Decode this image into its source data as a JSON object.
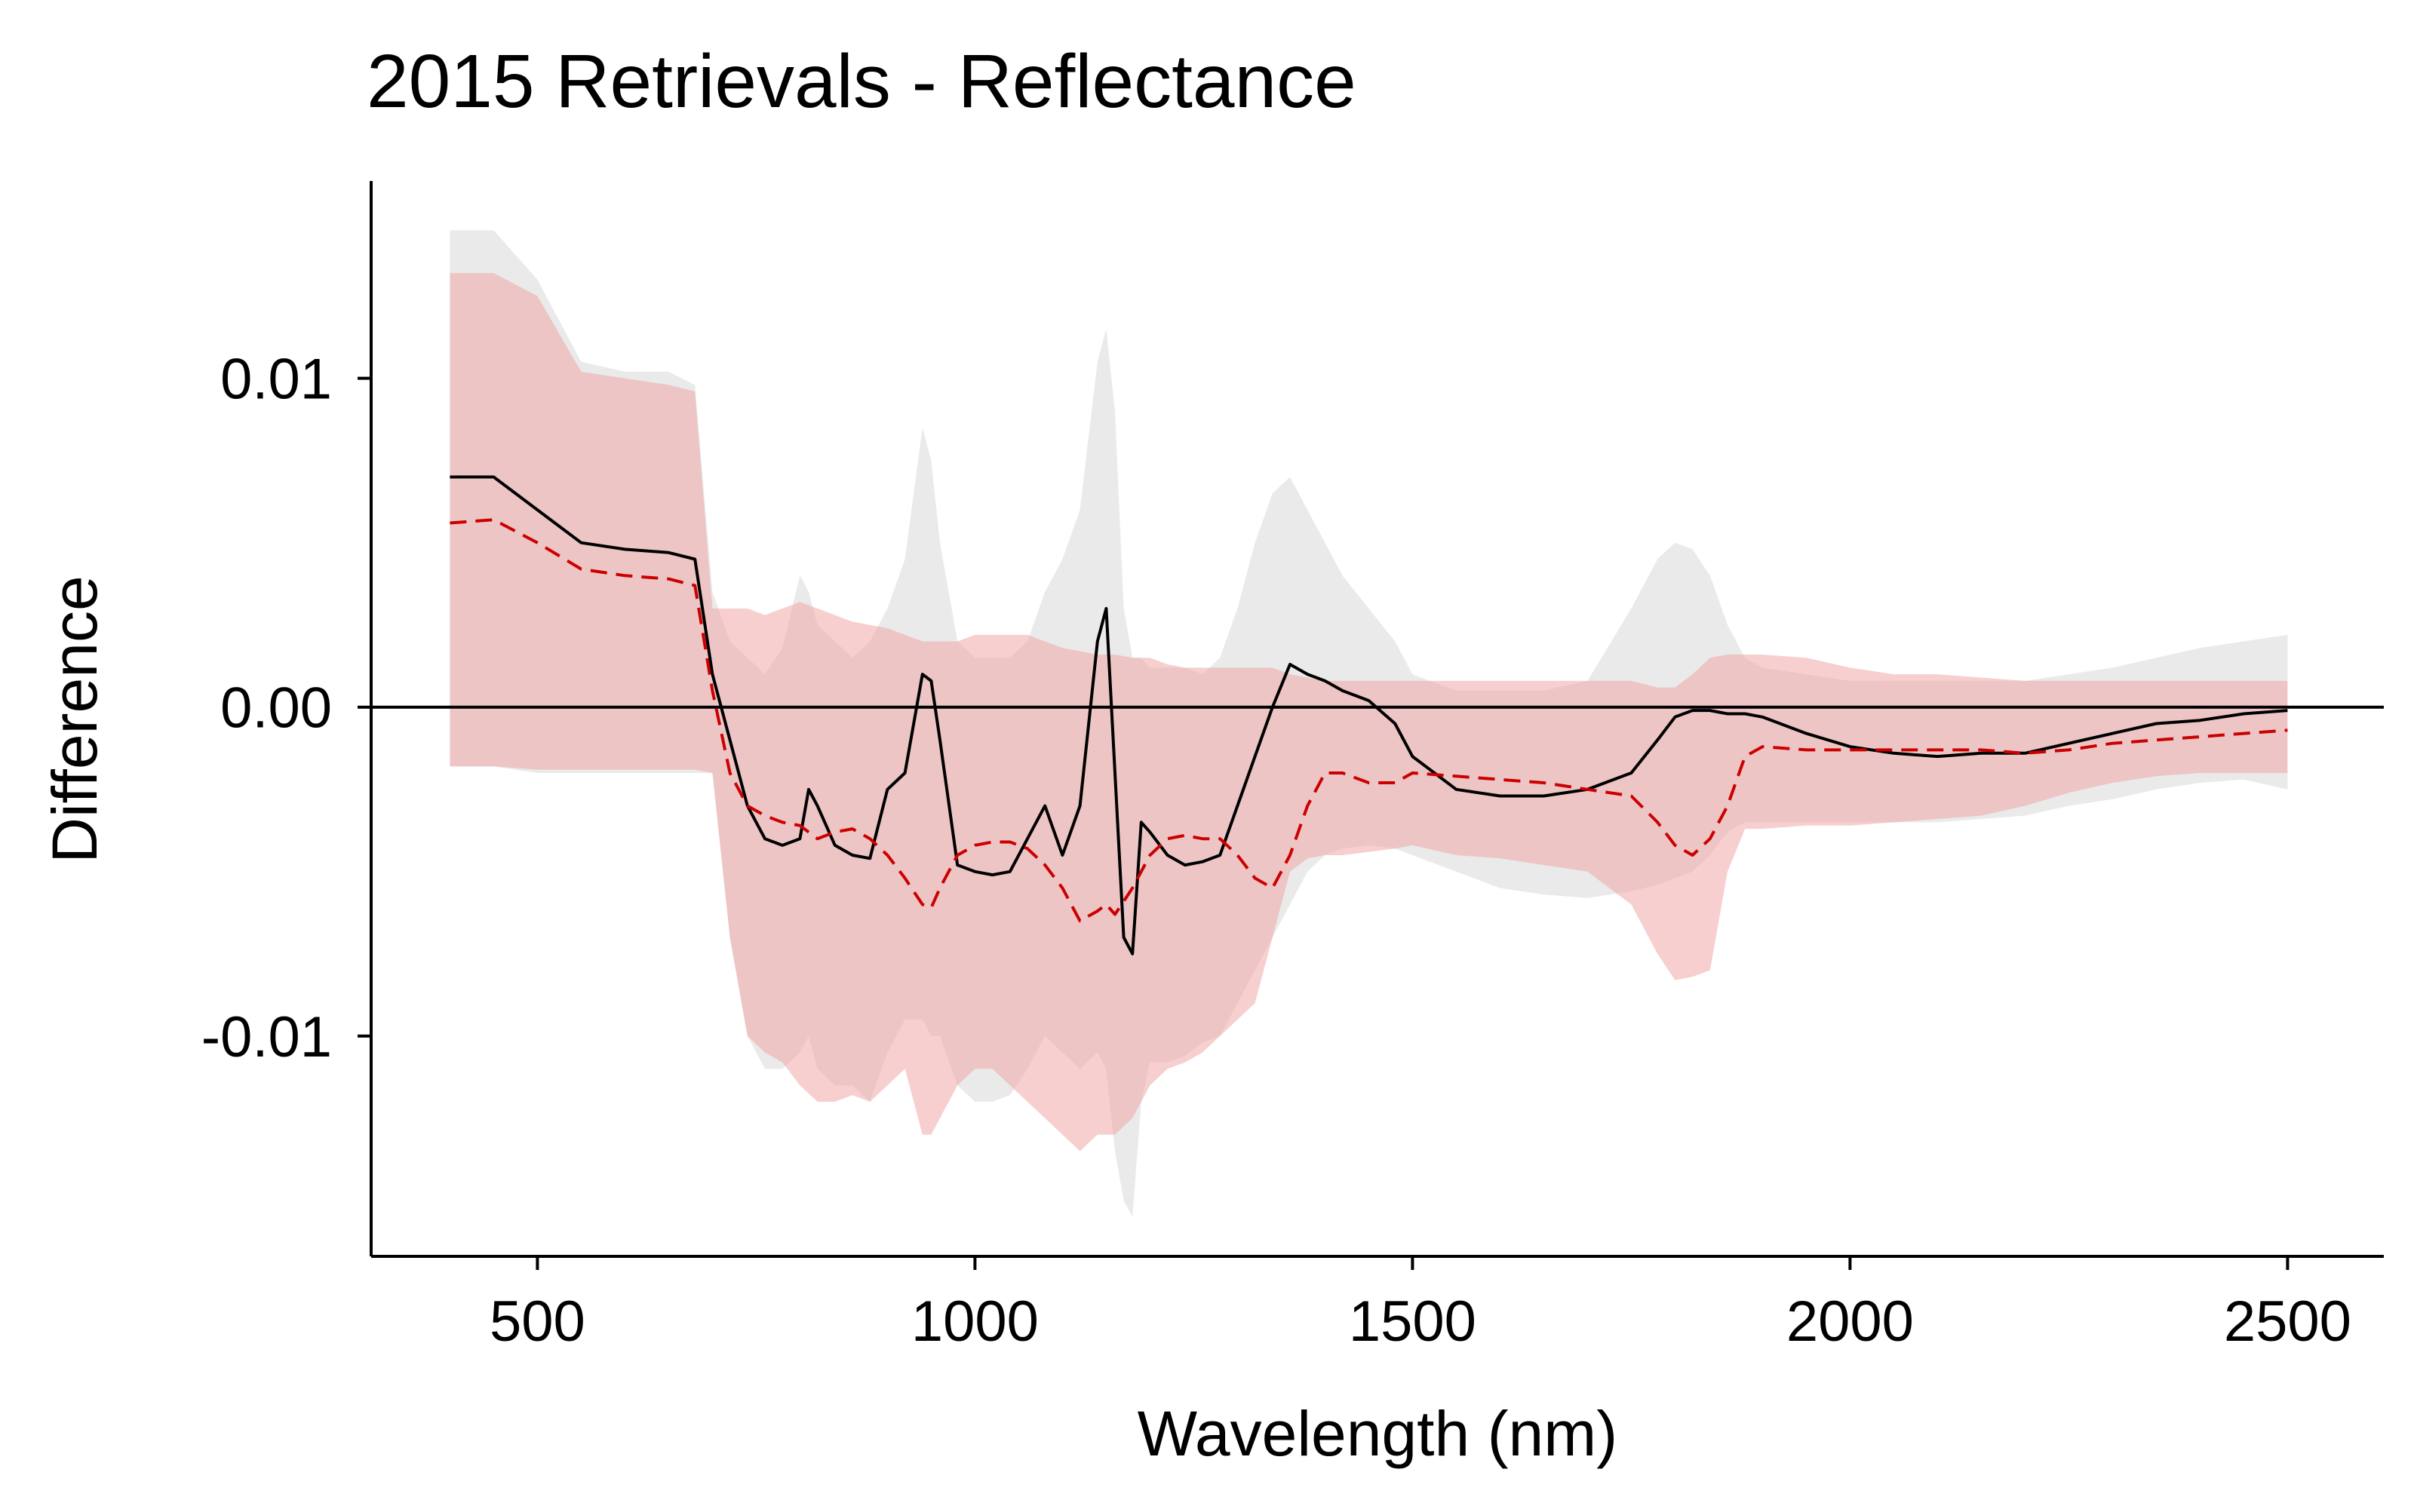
{
  "chart_data": {
    "type": "area",
    "title": "2015 Retrievals - Reflectance",
    "xlabel": "Wavelength (nm)",
    "ylabel": "Difference",
    "xlim": [
      310,
      2610
    ],
    "ylim": [
      -0.0167,
      0.016
    ],
    "x_ticks": [
      {
        "value": 500,
        "label": "500"
      },
      {
        "value": 1000,
        "label": "1000"
      },
      {
        "value": 1500,
        "label": "1500"
      },
      {
        "value": 2000,
        "label": "2000"
      },
      {
        "value": 2500,
        "label": "2500"
      }
    ],
    "y_ticks": [
      {
        "value": 0.01,
        "label": "0.01"
      },
      {
        "value": 0.0,
        "label": "0.00"
      },
      {
        "value": -0.01,
        "label": "-0.01"
      }
    ],
    "reference_line": 0,
    "grid": false,
    "colors": {
      "series_a_line": "#000000",
      "series_a_band": "#d6d6d6",
      "series_b_line": "#cc0000",
      "series_b_band": "#f0a0a0",
      "band_opacity": 0.5,
      "overlap": "#d4abac"
    },
    "series": [
      {
        "line_style": "solid",
        "color": "#000000",
        "band_color": "#d6d6d6",
        "x": [
          400,
          450,
          500,
          550,
          600,
          650,
          680,
          700,
          720,
          740,
          760,
          780,
          800,
          810,
          820,
          840,
          860,
          880,
          900,
          920,
          940,
          950,
          960,
          980,
          1000,
          1020,
          1040,
          1060,
          1080,
          1100,
          1120,
          1140,
          1150,
          1160,
          1170,
          1180,
          1190,
          1200,
          1220,
          1240,
          1260,
          1280,
          1300,
          1320,
          1340,
          1360,
          1380,
          1400,
          1420,
          1450,
          1480,
          1500,
          1550,
          1600,
          1650,
          1700,
          1750,
          1780,
          1800,
          1820,
          1840,
          1860,
          1880,
          1900,
          1950,
          2000,
          2050,
          2100,
          2150,
          2200,
          2250,
          2300,
          2350,
          2400,
          2450,
          2500
        ],
        "mean": [
          0.007,
          0.007,
          0.006,
          0.005,
          0.0048,
          0.0047,
          0.0045,
          0.001,
          -0.001,
          -0.003,
          -0.004,
          -0.0042,
          -0.004,
          -0.0025,
          -0.003,
          -0.0042,
          -0.0045,
          -0.0046,
          -0.0025,
          -0.002,
          0.001,
          0.0008,
          -0.001,
          -0.0048,
          -0.005,
          -0.0051,
          -0.005,
          -0.004,
          -0.003,
          -0.0045,
          -0.003,
          0.002,
          0.003,
          -0.002,
          -0.007,
          -0.0075,
          -0.0035,
          -0.0038,
          -0.0045,
          -0.0048,
          -0.0047,
          -0.0045,
          -0.003,
          -0.0015,
          0.0,
          0.0013,
          0.001,
          0.0008,
          0.0005,
          0.0002,
          -0.0005,
          -0.0015,
          -0.0025,
          -0.0027,
          -0.0027,
          -0.0025,
          -0.002,
          -0.001,
          -0.0003,
          -0.0001,
          -0.0001,
          -0.0002,
          -0.0002,
          -0.0003,
          -0.0008,
          -0.0012,
          -0.0014,
          -0.0015,
          -0.0014,
          -0.0014,
          -0.0011,
          -0.0008,
          -0.0005,
          -0.0004,
          -0.0002,
          -0.0001
        ],
        "upper": [
          0.0145,
          0.0145,
          0.013,
          0.0105,
          0.0102,
          0.0102,
          0.0098,
          0.0035,
          0.002,
          0.0015,
          0.001,
          0.0018,
          0.004,
          0.0035,
          0.0025,
          0.002,
          0.0015,
          0.002,
          0.003,
          0.0045,
          0.0085,
          0.0075,
          0.005,
          0.002,
          0.0015,
          0.0015,
          0.0015,
          0.002,
          0.0035,
          0.0045,
          0.006,
          0.0105,
          0.0115,
          0.009,
          0.003,
          0.0015,
          0.0015,
          0.0012,
          0.0012,
          0.0012,
          0.001,
          0.0015,
          0.003,
          0.005,
          0.0065,
          0.007,
          0.006,
          0.005,
          0.004,
          0.003,
          0.002,
          0.001,
          0.0005,
          0.0005,
          0.0005,
          0.0008,
          0.003,
          0.0045,
          0.005,
          0.0048,
          0.004,
          0.0025,
          0.0015,
          0.0012,
          0.001,
          0.0008,
          0.0008,
          0.0008,
          0.0008,
          0.0008,
          0.001,
          0.0012,
          0.0015,
          0.0018,
          0.002,
          0.0022
        ],
        "lower": [
          -0.0018,
          -0.0018,
          -0.002,
          -0.002,
          -0.002,
          -0.002,
          -0.002,
          -0.002,
          -0.007,
          -0.01,
          -0.011,
          -0.011,
          -0.0105,
          -0.01,
          -0.011,
          -0.0115,
          -0.0115,
          -0.012,
          -0.0105,
          -0.0095,
          -0.0095,
          -0.01,
          -0.01,
          -0.0115,
          -0.012,
          -0.012,
          -0.0118,
          -0.011,
          -0.01,
          -0.0105,
          -0.011,
          -0.0105,
          -0.011,
          -0.0135,
          -0.015,
          -0.0155,
          -0.012,
          -0.0108,
          -0.0108,
          -0.0106,
          -0.0102,
          -0.01,
          -0.009,
          -0.008,
          -0.007,
          -0.006,
          -0.005,
          -0.0045,
          -0.0043,
          -0.0042,
          -0.0043,
          -0.0045,
          -0.005,
          -0.0055,
          -0.0057,
          -0.0058,
          -0.0056,
          -0.0054,
          -0.0052,
          -0.005,
          -0.0045,
          -0.0038,
          -0.0035,
          -0.0035,
          -0.0035,
          -0.0035,
          -0.0035,
          -0.0035,
          -0.0034,
          -0.0033,
          -0.003,
          -0.0028,
          -0.0025,
          -0.0023,
          -0.0022,
          -0.0025
        ]
      },
      {
        "line_style": "dashed",
        "color": "#cc0000",
        "band_color": "#f0a0a0",
        "x": [
          400,
          450,
          500,
          550,
          600,
          650,
          680,
          700,
          720,
          740,
          760,
          780,
          800,
          820,
          840,
          860,
          880,
          900,
          920,
          940,
          950,
          960,
          980,
          1000,
          1020,
          1040,
          1060,
          1080,
          1100,
          1120,
          1140,
          1150,
          1160,
          1180,
          1200,
          1220,
          1240,
          1260,
          1280,
          1300,
          1320,
          1340,
          1360,
          1380,
          1400,
          1420,
          1450,
          1480,
          1500,
          1550,
          1600,
          1650,
          1700,
          1750,
          1780,
          1800,
          1820,
          1840,
          1860,
          1880,
          1900,
          1950,
          2000,
          2050,
          2100,
          2150,
          2200,
          2250,
          2300,
          2350,
          2400,
          2450,
          2500
        ],
        "mean": [
          0.0056,
          0.0057,
          0.005,
          0.0042,
          0.004,
          0.0039,
          0.0037,
          0.0005,
          -0.002,
          -0.003,
          -0.0033,
          -0.0035,
          -0.0036,
          -0.004,
          -0.0038,
          -0.0037,
          -0.004,
          -0.0045,
          -0.0052,
          -0.006,
          -0.0061,
          -0.0055,
          -0.0045,
          -0.0042,
          -0.0041,
          -0.0041,
          -0.0043,
          -0.0048,
          -0.0055,
          -0.0065,
          -0.0062,
          -0.006,
          -0.0063,
          -0.0055,
          -0.0045,
          -0.004,
          -0.0039,
          -0.004,
          -0.004,
          -0.0045,
          -0.0052,
          -0.0055,
          -0.0045,
          -0.003,
          -0.002,
          -0.002,
          -0.0023,
          -0.0023,
          -0.002,
          -0.0021,
          -0.0022,
          -0.0023,
          -0.0025,
          -0.0027,
          -0.0035,
          -0.0042,
          -0.0045,
          -0.004,
          -0.003,
          -0.0015,
          -0.0012,
          -0.0013,
          -0.0013,
          -0.0013,
          -0.0013,
          -0.0013,
          -0.0014,
          -0.0013,
          -0.0011,
          -0.001,
          -0.0009,
          -0.0008,
          -0.0007
        ],
        "upper": [
          0.0132,
          0.0132,
          0.0125,
          0.0102,
          0.01,
          0.0098,
          0.0096,
          0.003,
          0.003,
          0.003,
          0.0028,
          0.003,
          0.0032,
          0.003,
          0.0028,
          0.0026,
          0.0025,
          0.0024,
          0.0022,
          0.002,
          0.002,
          0.002,
          0.002,
          0.0022,
          0.0022,
          0.0022,
          0.0022,
          0.002,
          0.0018,
          0.0017,
          0.0016,
          0.0016,
          0.0016,
          0.0015,
          0.0015,
          0.0013,
          0.0012,
          0.0012,
          0.0012,
          0.0012,
          0.0012,
          0.0012,
          0.001,
          0.0009,
          0.0008,
          0.0008,
          0.0008,
          0.0008,
          0.0008,
          0.0008,
          0.0008,
          0.0008,
          0.0008,
          0.0008,
          0.0006,
          0.0006,
          0.001,
          0.0015,
          0.0016,
          0.0016,
          0.0016,
          0.0015,
          0.0012,
          0.001,
          0.001,
          0.0009,
          0.0008,
          0.0008,
          0.0008,
          0.0008,
          0.0008,
          0.0008,
          0.0008
        ],
        "lower": [
          -0.0018,
          -0.0018,
          -0.0019,
          -0.0019,
          -0.0019,
          -0.0019,
          -0.0019,
          -0.002,
          -0.007,
          -0.01,
          -0.0105,
          -0.0108,
          -0.0115,
          -0.012,
          -0.012,
          -0.0118,
          -0.012,
          -0.0115,
          -0.011,
          -0.013,
          -0.013,
          -0.0125,
          -0.0115,
          -0.011,
          -0.011,
          -0.0115,
          -0.012,
          -0.0125,
          -0.013,
          -0.0135,
          -0.013,
          -0.013,
          -0.013,
          -0.0125,
          -0.0115,
          -0.011,
          -0.0108,
          -0.0105,
          -0.01,
          -0.0095,
          -0.009,
          -0.007,
          -0.005,
          -0.0046,
          -0.0045,
          -0.0045,
          -0.0044,
          -0.0043,
          -0.0042,
          -0.0045,
          -0.0046,
          -0.0048,
          -0.005,
          -0.006,
          -0.0075,
          -0.0083,
          -0.0082,
          -0.008,
          -0.005,
          -0.0037,
          -0.0037,
          -0.0036,
          -0.0036,
          -0.0035,
          -0.0034,
          -0.0033,
          -0.003,
          -0.0026,
          -0.0023,
          -0.0021,
          -0.002,
          -0.002,
          -0.002
        ]
      }
    ]
  }
}
